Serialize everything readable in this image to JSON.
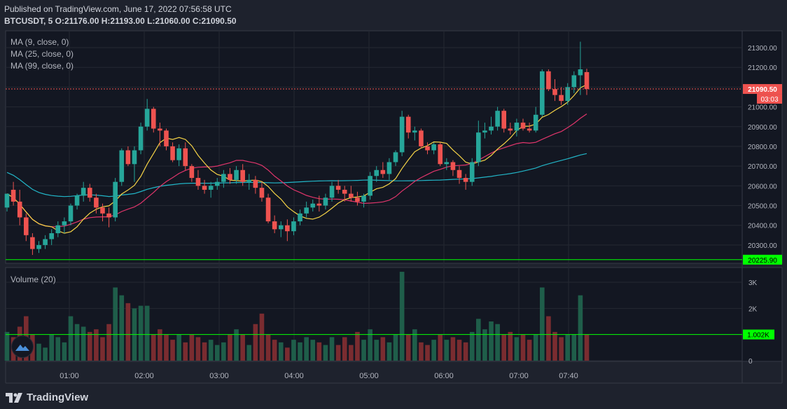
{
  "header": {
    "published": "Published on TradingView.com, June 17, 2022 07:56:58 UTC",
    "ohlc": "BTCUSDT, 5 O:21176.00 H:21193.00 L:21060.00 C:21090.50"
  },
  "legend": {
    "ma9": "MA (9, close, 0)",
    "ma25": "MA (25, close, 0)",
    "ma99": "MA (99, close, 0)",
    "volume": "Volume (20)"
  },
  "price_axis": {
    "ticks": [
      "21300.00",
      "21200.00",
      "21100.00",
      "21000.00",
      "20900.00",
      "20800.00",
      "20700.00",
      "20600.00",
      "20500.00",
      "20400.00",
      "20300.00",
      "20200.00"
    ],
    "last_price_label": "21090.50",
    "countdown_label": "03:03",
    "hline_label": "20225.90"
  },
  "volume_axis": {
    "ticks": [
      "3K",
      "2K",
      "1K",
      "0"
    ],
    "hline_label": "1.002K"
  },
  "time_axis": {
    "ticks": [
      "01:00",
      "02:00",
      "03:00",
      "04:00",
      "05:00",
      "06:00",
      "07:00",
      "07:40"
    ]
  },
  "footer": {
    "brand": "TradingView"
  },
  "colors": {
    "up": "#26a69a",
    "down": "#ef5350",
    "ma9": "#f5d346",
    "ma25": "#e0356b",
    "ma99": "#22b5c7",
    "hline": "#00ff00",
    "bg": "#1e222d"
  },
  "chart_data": {
    "type": "candlestick",
    "symbol": "BTCUSDT",
    "interval": "5",
    "price_range": [
      20200,
      21300
    ],
    "volume_range": [
      0,
      3000
    ],
    "horizontal_line_price": 20225.9,
    "horizontal_line_volume": 1002,
    "candles": [
      [
        20490,
        20560,
        20470,
        20560,
        1100
      ],
      [
        20580,
        20620,
        20500,
        20520,
        900
      ],
      [
        20520,
        20580,
        20400,
        20440,
        1300
      ],
      [
        20440,
        20460,
        20320,
        20350,
        1700
      ],
      [
        20340,
        20360,
        20250,
        20280,
        1000
      ],
      [
        20280,
        20320,
        20260,
        20300,
        650
      ],
      [
        20300,
        20350,
        20280,
        20330,
        500
      ],
      [
        20330,
        20380,
        20300,
        20360,
        1000
      ],
      [
        20360,
        20420,
        20340,
        20400,
        900
      ],
      [
        20400,
        20440,
        20360,
        20420,
        700
      ],
      [
        20420,
        20510,
        20400,
        20500,
        1700
      ],
      [
        20500,
        20560,
        20480,
        20550,
        1400
      ],
      [
        20550,
        20620,
        20520,
        20590,
        1300
      ],
      [
        20590,
        20610,
        20520,
        20540,
        1100
      ],
      [
        20540,
        20560,
        20460,
        20490,
        1200
      ],
      [
        20490,
        20510,
        20420,
        20460,
        900
      ],
      [
        20460,
        20490,
        20390,
        20440,
        1400
      ],
      [
        20440,
        20640,
        20420,
        20620,
        2800
      ],
      [
        20620,
        20790,
        20600,
        20780,
        2500
      ],
      [
        20780,
        20800,
        20700,
        20710,
        2200
      ],
      [
        20710,
        20800,
        20620,
        20780,
        2000
      ],
      [
        20780,
        20920,
        20760,
        20900,
        2100
      ],
      [
        20900,
        21040,
        20880,
        20990,
        2100
      ],
      [
        20990,
        21000,
        20870,
        20890,
        1000
      ],
      [
        20890,
        20920,
        20800,
        20880,
        1200
      ],
      [
        20880,
        20890,
        20780,
        20800,
        1000
      ],
      [
        20800,
        20820,
        20720,
        20730,
        800
      ],
      [
        20730,
        20810,
        20700,
        20790,
        1000
      ],
      [
        20790,
        20820,
        20680,
        20700,
        700
      ],
      [
        20700,
        20710,
        20620,
        20640,
        1000
      ],
      [
        20640,
        20680,
        20580,
        20600,
        900
      ],
      [
        20600,
        20630,
        20560,
        20580,
        700
      ],
      [
        20580,
        20620,
        20540,
        20600,
        800
      ],
      [
        20600,
        20640,
        20580,
        20620,
        600
      ],
      [
        20620,
        20680,
        20590,
        20660,
        700
      ],
      [
        20660,
        20690,
        20610,
        20630,
        1000
      ],
      [
        20630,
        20700,
        20610,
        20680,
        1200
      ],
      [
        20680,
        20710,
        20600,
        20620,
        1000
      ],
      [
        20620,
        20660,
        20580,
        20630,
        600
      ],
      [
        20630,
        20650,
        20560,
        20590,
        1400
      ],
      [
        20590,
        20620,
        20520,
        20540,
        1800
      ],
      [
        20540,
        20560,
        20410,
        20420,
        1000
      ],
      [
        20420,
        20450,
        20360,
        20380,
        800
      ],
      [
        20380,
        20420,
        20340,
        20400,
        700
      ],
      [
        20400,
        20430,
        20320,
        20370,
        500
      ],
      [
        20370,
        20440,
        20350,
        20420,
        800
      ],
      [
        20420,
        20480,
        20400,
        20460,
        700
      ],
      [
        20460,
        20520,
        20440,
        20490,
        900
      ],
      [
        20490,
        20530,
        20470,
        20510,
        800
      ],
      [
        20510,
        20550,
        20470,
        20500,
        700
      ],
      [
        20500,
        20560,
        20480,
        20540,
        600
      ],
      [
        20540,
        20620,
        20520,
        20600,
        900
      ],
      [
        20600,
        20630,
        20560,
        20580,
        600
      ],
      [
        20580,
        20600,
        20520,
        20560,
        900
      ],
      [
        20560,
        20600,
        20520,
        20540,
        600
      ],
      [
        20540,
        20570,
        20500,
        20520,
        1100
      ],
      [
        20520,
        20560,
        20490,
        20550,
        800
      ],
      [
        20550,
        20670,
        20530,
        20650,
        1200
      ],
      [
        20650,
        20700,
        20620,
        20680,
        800
      ],
      [
        20680,
        20720,
        20640,
        20660,
        900
      ],
      [
        20660,
        20740,
        20630,
        20720,
        700
      ],
      [
        20720,
        20780,
        20700,
        20770,
        1000
      ],
      [
        20770,
        20980,
        20750,
        20950,
        3400
      ],
      [
        20950,
        20960,
        20840,
        20870,
        1000
      ],
      [
        20870,
        20900,
        20830,
        20880,
        1200
      ],
      [
        20880,
        20890,
        20790,
        20800,
        700
      ],
      [
        20800,
        20820,
        20760,
        20780,
        600
      ],
      [
        20780,
        20820,
        20760,
        20810,
        800
      ],
      [
        20810,
        20820,
        20700,
        20710,
        1000
      ],
      [
        20710,
        20740,
        20680,
        20720,
        800
      ],
      [
        20720,
        20730,
        20650,
        20680,
        900
      ],
      [
        20680,
        20700,
        20610,
        20640,
        800
      ],
      [
        20640,
        20660,
        20580,
        20620,
        700
      ],
      [
        20620,
        20740,
        20600,
        20720,
        1100
      ],
      [
        20720,
        20930,
        20700,
        20870,
        1600
      ],
      [
        20870,
        20920,
        20840,
        20880,
        1200
      ],
      [
        20880,
        20950,
        20860,
        20900,
        1500
      ],
      [
        20900,
        21000,
        20880,
        20980,
        1400
      ],
      [
        20980,
        20990,
        20870,
        20890,
        1000
      ],
      [
        20890,
        20920,
        20860,
        20880,
        1100
      ],
      [
        20880,
        20940,
        20850,
        20920,
        900
      ],
      [
        20920,
        20940,
        20880,
        20890,
        1000
      ],
      [
        20890,
        20920,
        20870,
        20880,
        800
      ],
      [
        20880,
        21000,
        20870,
        20960,
        1000
      ],
      [
        20960,
        21190,
        20950,
        21180,
        2800
      ],
      [
        21180,
        21190,
        21080,
        21090,
        1700
      ],
      [
        21090,
        21140,
        21030,
        21060,
        1100
      ],
      [
        21060,
        21100,
        21010,
        21030,
        900
      ],
      [
        21030,
        21120,
        21010,
        21100,
        1000
      ],
      [
        21100,
        21180,
        21070,
        21160,
        1000
      ],
      [
        21160,
        21330,
        21060,
        21190,
        2500
      ],
      [
        21176,
        21193,
        21060,
        21090.5,
        1000
      ]
    ],
    "ma_last": {
      "ma9": 21050,
      "ma25": 20900,
      "ma99": 20650
    }
  }
}
